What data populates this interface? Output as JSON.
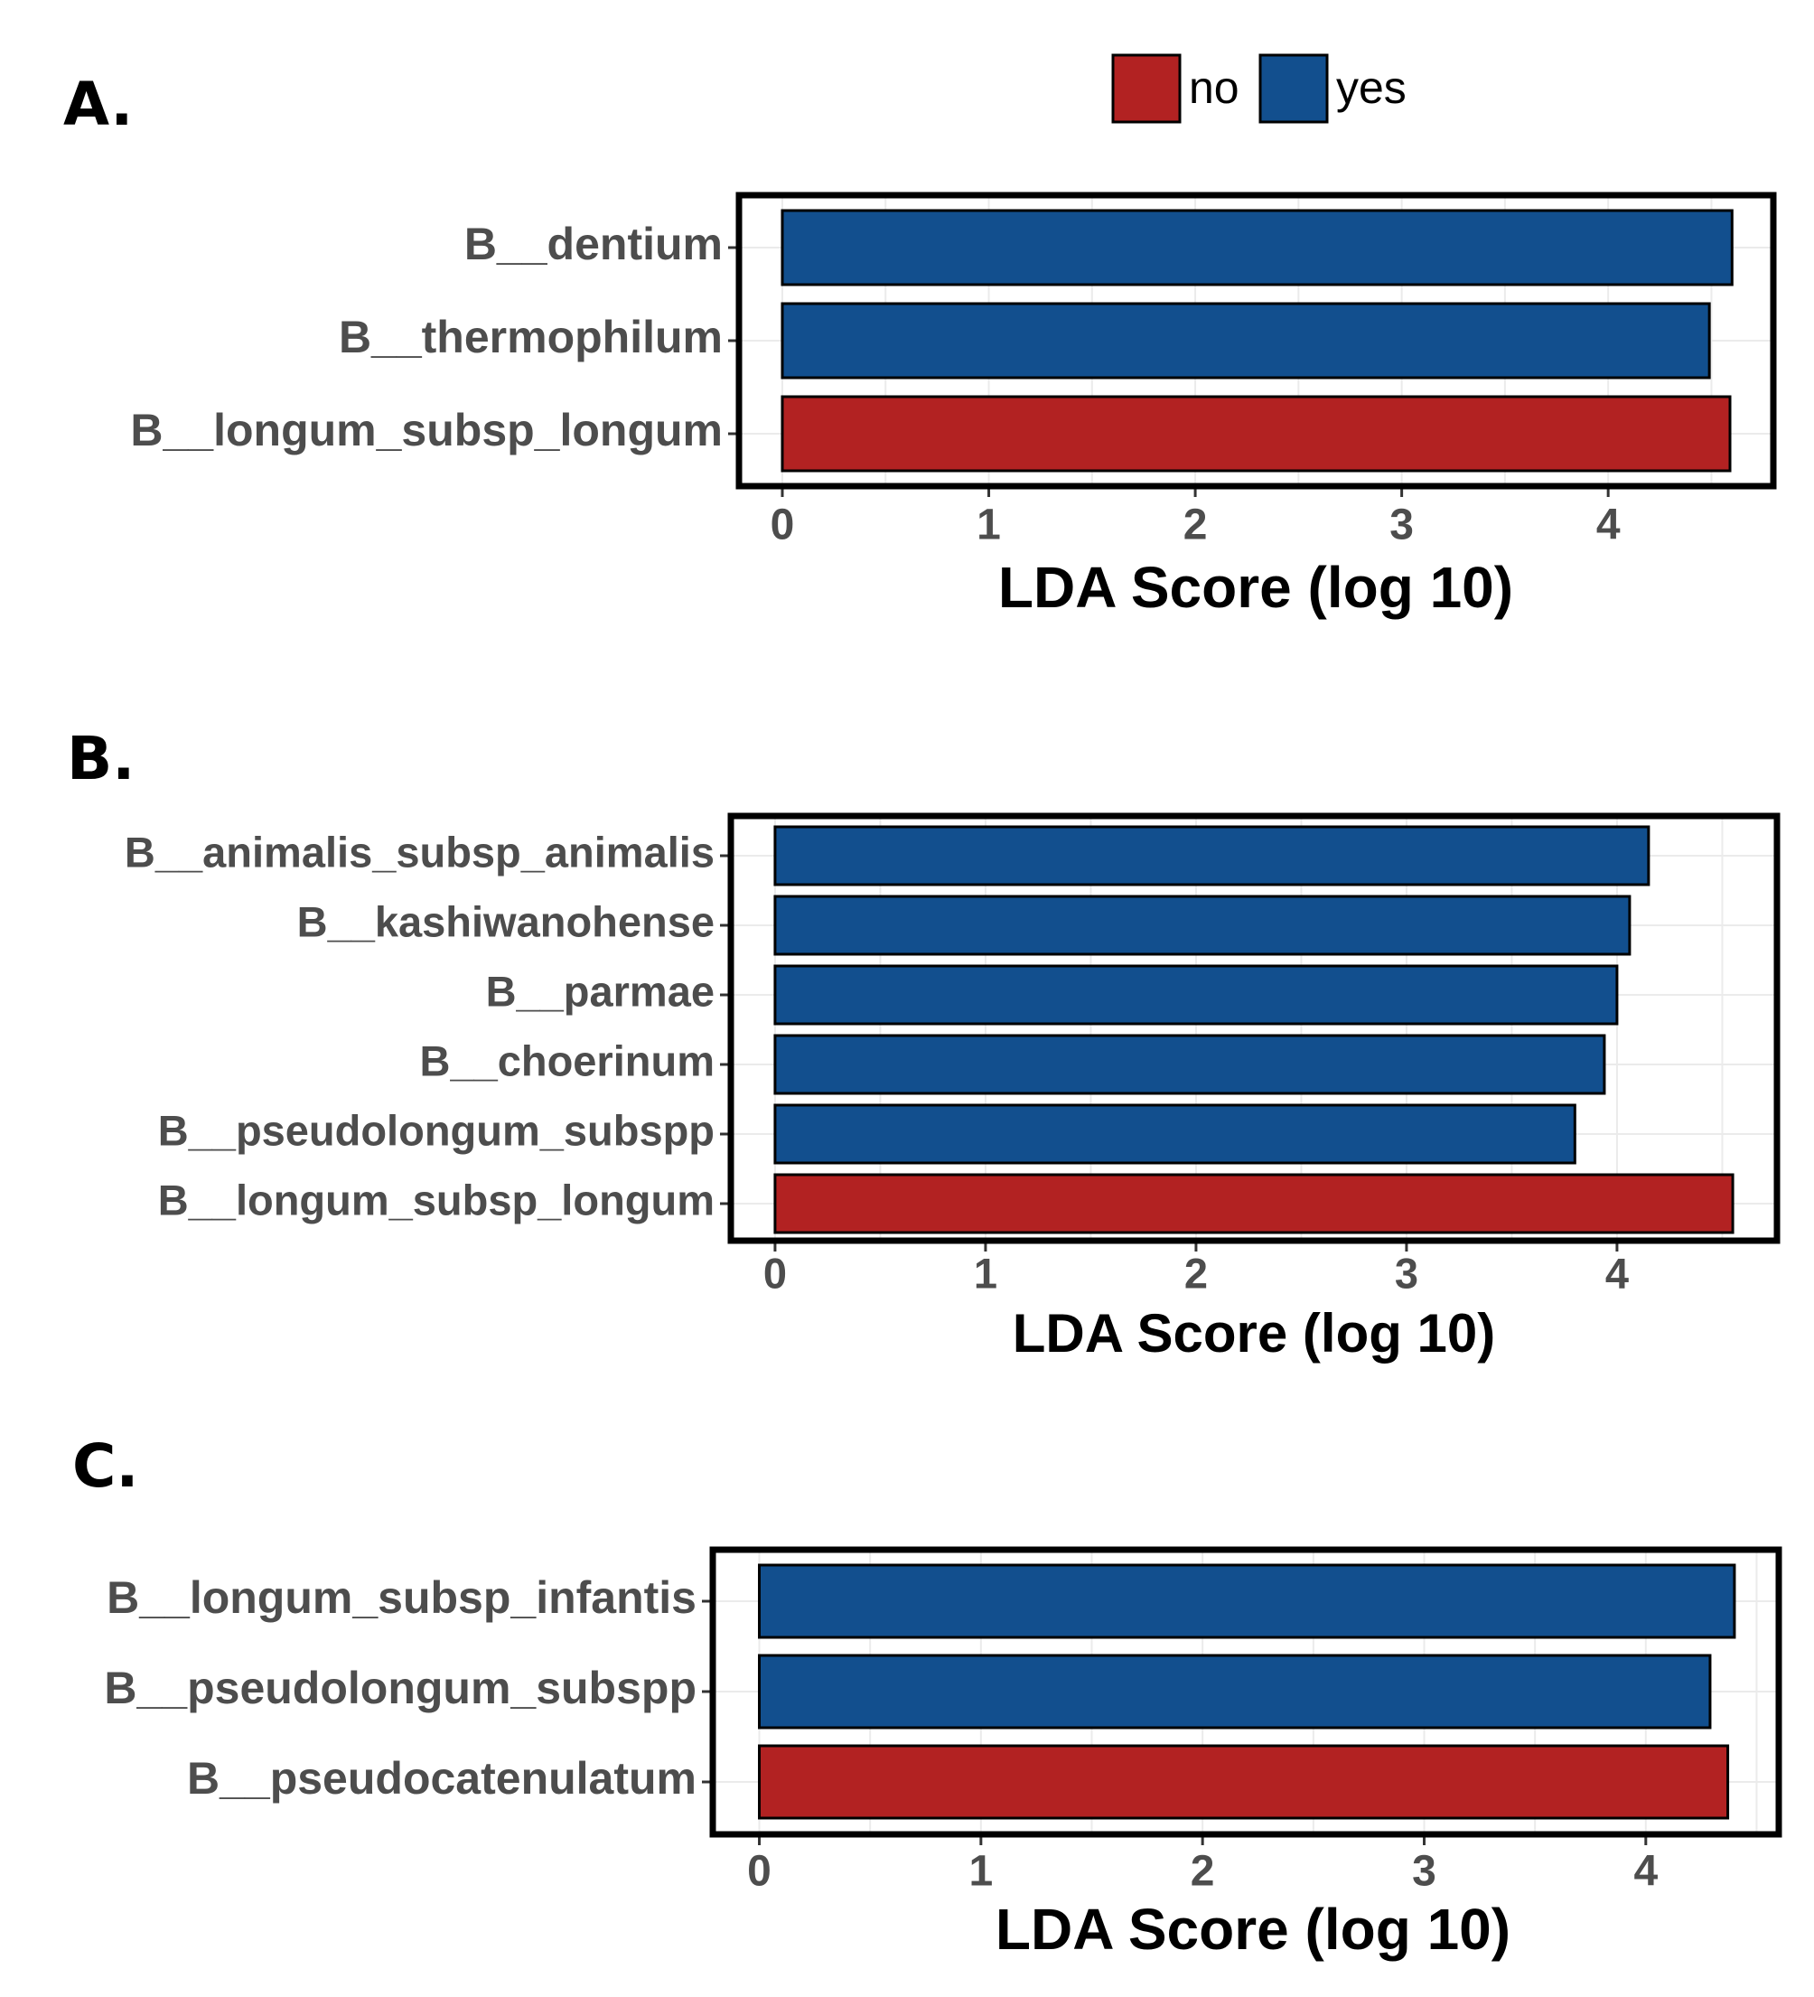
{
  "legend": {
    "items": [
      {
        "label": "no",
        "color": "#b22222"
      },
      {
        "label": "yes",
        "color": "#124f8e"
      }
    ]
  },
  "chart_data": [
    {
      "type": "bar",
      "orientation": "horizontal",
      "panel_label": "A.",
      "categories": [
        "B__dentium",
        "B__thermophilum",
        "B__longum_subsp_longum"
      ],
      "values": [
        4.6,
        4.49,
        4.59
      ],
      "groups": [
        "yes",
        "yes",
        "no"
      ],
      "xlabel": "LDA Score (log 10)",
      "xticks": [
        0,
        1,
        2,
        3,
        4
      ],
      "xlim": [
        -0.21,
        4.8
      ]
    },
    {
      "type": "bar",
      "orientation": "horizontal",
      "panel_label": "B.",
      "categories": [
        "B__animalis_subsp_animalis",
        "B__kashiwanohense",
        "B__parmae",
        "B__choerinum",
        "B__pseudolongum_subspp",
        "B__longum_subsp_longum"
      ],
      "values": [
        4.15,
        4.06,
        4.0,
        3.94,
        3.8,
        4.55
      ],
      "groups": [
        "yes",
        "yes",
        "yes",
        "yes",
        "yes",
        "no"
      ],
      "xlabel": "LDA Score (log 10)",
      "xticks": [
        0,
        1,
        2,
        3,
        4
      ],
      "xlim": [
        -0.21,
        4.76
      ]
    },
    {
      "type": "bar",
      "orientation": "horizontal",
      "panel_label": "C.",
      "categories": [
        "B__longum_subsp_infantis",
        "B__pseudolongum_subspp",
        "B__pseudocatenulatum"
      ],
      "values": [
        4.4,
        4.29,
        4.37
      ],
      "groups": [
        "yes",
        "yes",
        "no"
      ],
      "xlabel": "LDA Score (log 10)",
      "xticks": [
        0,
        1,
        2,
        3,
        4
      ],
      "xlim": [
        -0.21,
        4.6
      ]
    }
  ]
}
